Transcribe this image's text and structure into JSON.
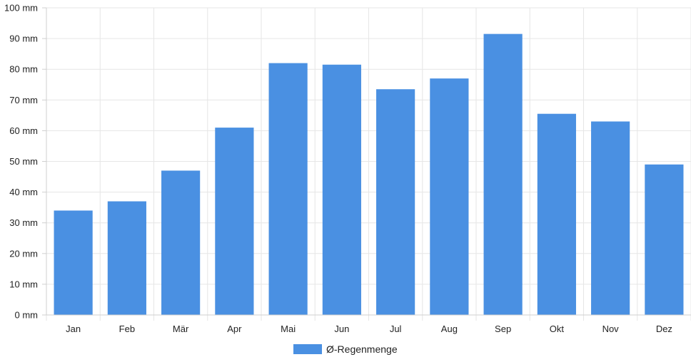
{
  "chart_data": {
    "type": "bar",
    "categories": [
      "Jan",
      "Feb",
      "Mär",
      "Apr",
      "Mai",
      "Jun",
      "Jul",
      "Aug",
      "Sep",
      "Okt",
      "Nov",
      "Dez"
    ],
    "series": [
      {
        "name": "Ø-Regenmenge",
        "values": [
          34,
          37,
          47,
          61,
          82,
          81.5,
          73.5,
          77,
          91.5,
          65.5,
          63,
          49
        ],
        "color": "#4a90e2"
      }
    ],
    "ylim": [
      0,
      100
    ],
    "yticks": [
      0,
      10,
      20,
      30,
      40,
      50,
      60,
      70,
      80,
      90,
      100
    ],
    "y_unit": "mm",
    "grid": true,
    "legend_position": "bottom"
  }
}
